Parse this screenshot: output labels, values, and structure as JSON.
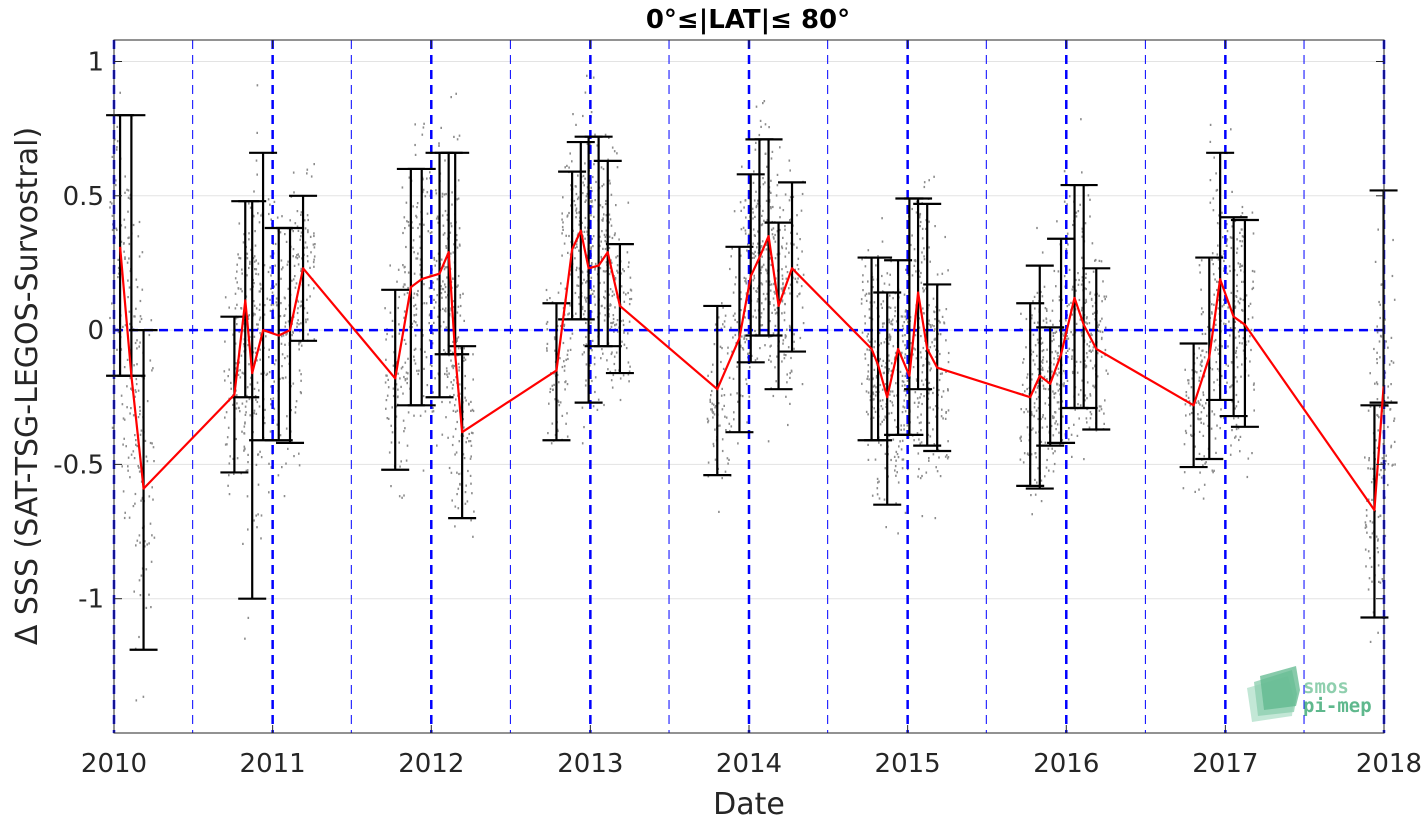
{
  "chart_data": {
    "type": "line",
    "title": "0°≤|LAT|≤ 80°",
    "xlabel": "Date",
    "ylabel": "Δ SSS (SAT-TSG-LEGOS-Survostral)",
    "xlim": [
      "2010-01-01",
      "2018-01-01"
    ],
    "ylim": [
      -1.5,
      1.08
    ],
    "x_ticks": [
      "2010",
      "2011",
      "2012",
      "2013",
      "2014",
      "2015",
      "2016",
      "2017",
      "2018"
    ],
    "y_ticks": [
      -1,
      -0.5,
      0,
      0.5,
      1
    ],
    "y_tick_labels": [
      "-1",
      "-0.5",
      "0",
      "0.5",
      "1"
    ],
    "grid": true,
    "reference_line_y": 0,
    "year_lines_thick": [
      "2010",
      "2011",
      "2012",
      "2013",
      "2014",
      "2015",
      "2016",
      "2017",
      "2018"
    ],
    "half_year_lines_thin": [
      "2010-07",
      "2011-07",
      "2012-07",
      "2013-07",
      "2014-07",
      "2015-07",
      "2016-07",
      "2017-07"
    ],
    "colors": {
      "mean_line": "#ff0000",
      "error_bars": "#000000",
      "scatter": "#8c8c8c",
      "reference_lines": "#0000ff"
    },
    "series": [
      {
        "x": [
          "2010-01-15",
          "2010-02-10",
          "2010-03-10",
          "2010-10-05",
          "2010-10-30",
          "2010-11-15",
          "2010-12-10",
          "2011-01-15",
          "2011-02-10",
          "2011-03-12",
          "2011-10-10",
          "2011-11-15",
          "2011-12-10",
          "2012-01-20",
          "2012-02-10",
          "2012-02-25",
          "2012-03-12",
          "2012-10-15",
          "2012-11-20",
          "2012-12-10",
          "2012-12-28",
          "2013-01-20",
          "2013-02-10",
          "2013-03-10",
          "2013-10-20",
          "2013-12-10",
          "2014-01-05",
          "2014-01-25",
          "2014-02-15",
          "2014-03-10",
          "2014-04-10",
          "2014-10-10",
          "2014-10-25",
          "2014-11-15",
          "2014-12-10",
          "2015-01-05",
          "2015-01-25",
          "2015-02-15",
          "2015-03-10",
          "2015-10-10",
          "2015-11-01",
          "2015-11-25",
          "2015-12-20",
          "2016-01-20",
          "2016-02-10",
          "2016-03-10",
          "2016-10-20",
          "2016-11-25",
          "2016-12-20",
          "2017-01-20",
          "2017-02-15",
          "2017-12-10",
          "2017-12-31"
        ],
        "values": [
          0.31,
          -0.17,
          -0.59,
          -0.24,
          0.11,
          -0.16,
          0.0,
          -0.02,
          0.0,
          0.23,
          -0.18,
          0.16,
          0.19,
          0.21,
          0.29,
          -0.09,
          -0.38,
          -0.15,
          0.3,
          0.37,
          0.23,
          0.24,
          0.29,
          0.09,
          -0.22,
          -0.03,
          0.2,
          0.27,
          0.35,
          0.09,
          0.23,
          -0.07,
          -0.13,
          -0.25,
          -0.07,
          -0.17,
          0.14,
          -0.07,
          -0.14,
          -0.25,
          -0.17,
          -0.2,
          -0.09,
          0.12,
          0.02,
          -0.07,
          -0.28,
          -0.1,
          0.19,
          0.05,
          0.02,
          -0.67,
          -0.21
        ],
        "err_low": [
          -0.17,
          -0.17,
          -1.19,
          -0.53,
          -0.25,
          -1.0,
          -0.41,
          -0.41,
          -0.42,
          -0.04,
          -0.52,
          -0.28,
          -0.28,
          -0.25,
          -0.09,
          -0.09,
          -0.7,
          -0.41,
          0.04,
          0.04,
          -0.27,
          -0.06,
          -0.06,
          -0.16,
          -0.54,
          -0.38,
          -0.12,
          -0.02,
          -0.02,
          -0.22,
          -0.08,
          -0.41,
          -0.41,
          -0.65,
          -0.39,
          -0.39,
          -0.22,
          -0.43,
          -0.45,
          -0.58,
          -0.59,
          -0.43,
          -0.42,
          -0.29,
          -0.29,
          -0.37,
          -0.51,
          -0.48,
          -0.26,
          -0.32,
          -0.36,
          -1.07,
          -0.27
        ],
        "err_high": [
          0.8,
          0.8,
          0.0,
          0.05,
          0.48,
          0.48,
          0.66,
          0.38,
          0.38,
          0.5,
          0.15,
          0.6,
          0.6,
          0.66,
          0.66,
          0.66,
          -0.06,
          0.1,
          0.59,
          0.7,
          0.72,
          0.72,
          0.63,
          0.32,
          0.09,
          0.31,
          0.58,
          0.71,
          0.71,
          0.4,
          0.55,
          0.27,
          0.27,
          0.14,
          0.26,
          0.49,
          0.49,
          0.47,
          0.17,
          0.1,
          0.24,
          0.01,
          0.34,
          0.54,
          0.54,
          0.23,
          -0.05,
          0.27,
          0.66,
          0.42,
          0.41,
          -0.28,
          0.52
        ]
      }
    ]
  },
  "logo": {
    "text_line1": "smos",
    "text_line2": "pi-mep"
  }
}
